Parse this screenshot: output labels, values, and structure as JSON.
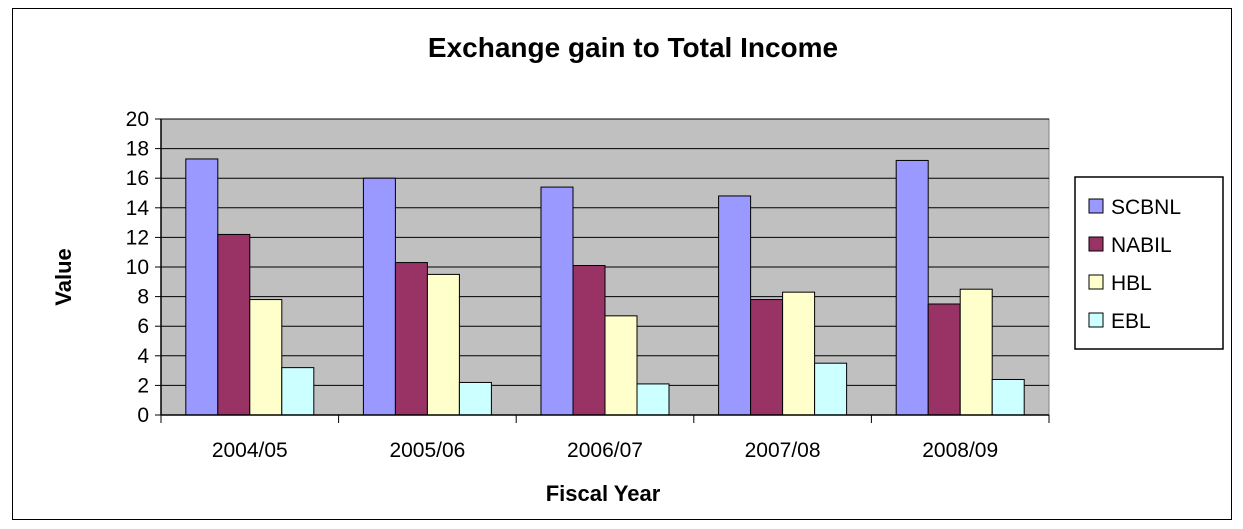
{
  "chart_data": {
    "type": "bar",
    "title": "Exchange gain to Total Income",
    "xlabel": "Fiscal Year",
    "ylabel": "Value",
    "categories": [
      "2004/05",
      "2005/06",
      "2006/07",
      "2007/08",
      "2008/09"
    ],
    "ylim": [
      0,
      20
    ],
    "yticks": [
      0,
      2,
      4,
      6,
      8,
      10,
      12,
      14,
      16,
      18,
      20
    ],
    "grid": true,
    "legend_position": "right",
    "series": [
      {
        "name": "SCBNL",
        "color": "#9999ff",
        "values": [
          17.3,
          16.0,
          15.4,
          14.8,
          17.2
        ]
      },
      {
        "name": "NABIL",
        "color": "#993366",
        "values": [
          12.2,
          10.3,
          10.1,
          7.8,
          7.5
        ]
      },
      {
        "name": "HBL",
        "color": "#ffffcc",
        "values": [
          7.8,
          9.5,
          6.7,
          8.3,
          8.5
        ]
      },
      {
        "name": "EBL",
        "color": "#ccffff",
        "values": [
          3.2,
          2.2,
          2.1,
          3.5,
          2.4
        ]
      }
    ],
    "plot_background": "#c0c0c0"
  }
}
